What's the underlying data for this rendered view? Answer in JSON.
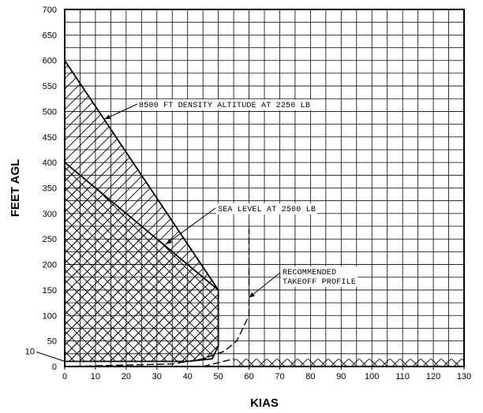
{
  "chart_data": {
    "type": "line",
    "title": "",
    "xlabel": "KIAS",
    "ylabel": "FEET AGL",
    "xlim": [
      0,
      130
    ],
    "ylim": [
      0,
      700
    ],
    "x_ticks": [
      0,
      10,
      20,
      30,
      40,
      50,
      60,
      70,
      80,
      90,
      100,
      110,
      120,
      130
    ],
    "y_ticks": [
      0,
      50,
      100,
      150,
      200,
      250,
      300,
      350,
      400,
      450,
      500,
      550,
      600,
      650,
      700
    ],
    "extra_y_tick": 10,
    "grid": true,
    "series": [
      {
        "name": "8500 FT DENSITY ALTITUDE AT 2250 LB",
        "style": "solid",
        "points": [
          [
            0,
            600
          ],
          [
            50,
            150
          ],
          [
            50,
            40
          ],
          [
            48,
            15
          ],
          [
            40,
            10
          ],
          [
            0,
            10
          ]
        ]
      },
      {
        "name": "SEA LEVEL AT 2500 LB",
        "style": "solid",
        "points": [
          [
            0,
            400
          ],
          [
            50,
            150
          ]
        ]
      },
      {
        "name": "RECOMMENDED TAKEOFF PROFILE",
        "style": "dashed",
        "points": [
          [
            0,
            0
          ],
          [
            35,
            5
          ],
          [
            45,
            15
          ],
          [
            52,
            30
          ],
          [
            56,
            50
          ],
          [
            58,
            75
          ],
          [
            60,
            100
          ],
          [
            60,
            270
          ]
        ]
      },
      {
        "name": "",
        "style": "dashed",
        "points": [
          [
            45,
            0
          ],
          [
            55,
            15
          ]
        ]
      }
    ],
    "regions": [
      {
        "name": "avoid-region-8500ft",
        "hatch": "single",
        "points": [
          [
            0,
            600
          ],
          [
            50,
            150
          ],
          [
            50,
            40
          ],
          [
            48,
            15
          ],
          [
            40,
            10
          ],
          [
            0,
            10
          ]
        ]
      },
      {
        "name": "avoid-region-sea-level",
        "hatch": "cross",
        "points": [
          [
            0,
            400
          ],
          [
            50,
            150
          ],
          [
            50,
            40
          ],
          [
            48,
            15
          ],
          [
            40,
            10
          ],
          [
            0,
            10
          ]
        ]
      },
      {
        "name": "avoid-region-low-altitude",
        "hatch": "cross",
        "points": [
          [
            55,
            0
          ],
          [
            130,
            0
          ],
          [
            130,
            15
          ],
          [
            55,
            15
          ]
        ]
      }
    ],
    "annotations": [
      {
        "text": "8500 FT DENSITY ALTITUDE AT 2250 LB",
        "lines": [
          "8500 FT DENSITY ALTITUDE AT 2250 LB"
        ],
        "target": [
          13,
          485
        ]
      },
      {
        "text": "SEA LEVEL AT 2500 LB",
        "lines": [
          "SEA LEVEL AT 2500 LB"
        ],
        "target": [
          33,
          240
        ]
      },
      {
        "text": "RECOMMENDED TAKEOFF PROFILE",
        "lines": [
          "RECOMMENDED",
          "TAKEOFF PROFILE"
        ],
        "target": [
          60,
          135
        ]
      }
    ]
  }
}
